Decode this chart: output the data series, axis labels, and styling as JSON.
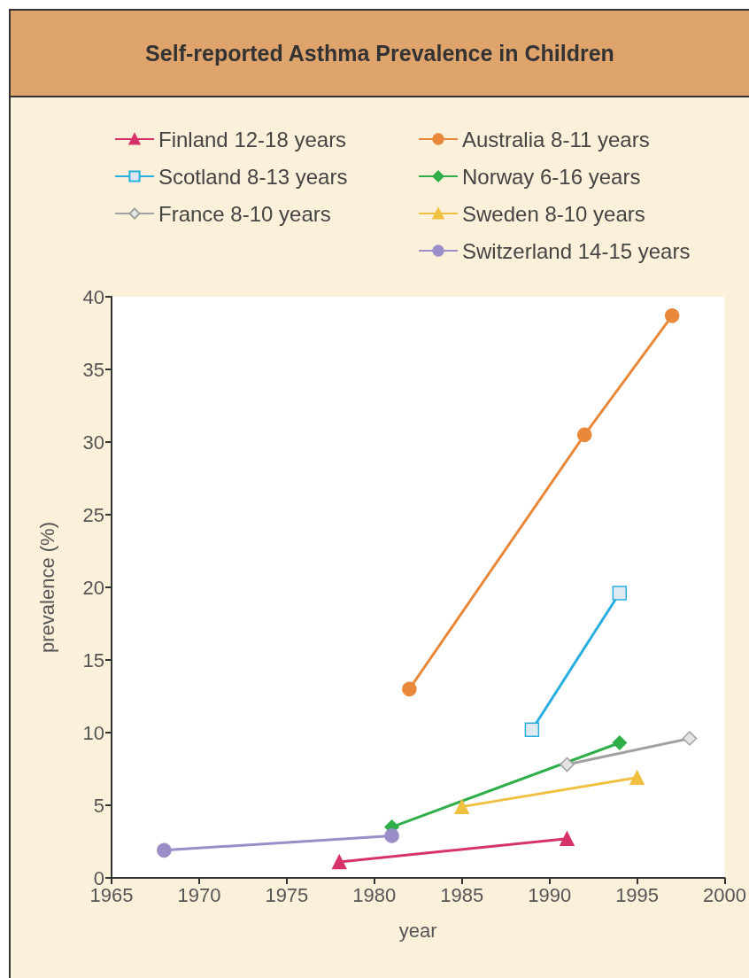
{
  "chart_data": {
    "type": "line",
    "title": "Self-reported Asthma Prevalence in Children",
    "xlabel": "year",
    "ylabel": "prevalence (%)",
    "xlim": [
      1965,
      2000
    ],
    "xticks": [
      1965,
      1970,
      1975,
      1980,
      1985,
      1990,
      1995,
      2000
    ],
    "ylim": [
      0,
      40
    ],
    "yticks": [
      0,
      5,
      10,
      15,
      20,
      25,
      30,
      35,
      40
    ],
    "grid": false,
    "legend": "top",
    "series": [
      {
        "name": "Finland 12-18 years",
        "color": "#d6336a",
        "marker": "triangle",
        "x": [
          1978,
          1991
        ],
        "values": [
          1.1,
          2.7
        ]
      },
      {
        "name": "Australia 8-11 years",
        "color": "#e8883a",
        "marker": "circle",
        "x": [
          1982,
          1992,
          1997
        ],
        "values": [
          13.0,
          30.5,
          38.7
        ]
      },
      {
        "name": "Scotland 8-13 years",
        "color": "#29aee0",
        "marker": "square",
        "x": [
          1989,
          1994
        ],
        "values": [
          10.2,
          19.6
        ]
      },
      {
        "name": "Norway 6-16 years",
        "color": "#2fae4a",
        "marker": "diamond",
        "x": [
          1981,
          1994
        ],
        "values": [
          3.5,
          9.3
        ]
      },
      {
        "name": "France 8-10 years",
        "color": "#a0a0a0",
        "marker": "diamond",
        "x": [
          1991,
          1998
        ],
        "values": [
          7.8,
          9.6
        ]
      },
      {
        "name": "Sweden 8-10 years",
        "color": "#f0c040",
        "marker": "triangle",
        "x": [
          1985,
          1995
        ],
        "values": [
          4.9,
          6.9
        ]
      },
      {
        "name": "Switzerland 14-15 years",
        "color": "#9b8ec8",
        "marker": "circle",
        "x": [
          1968,
          1981
        ],
        "values": [
          1.9,
          2.9
        ]
      }
    ]
  }
}
